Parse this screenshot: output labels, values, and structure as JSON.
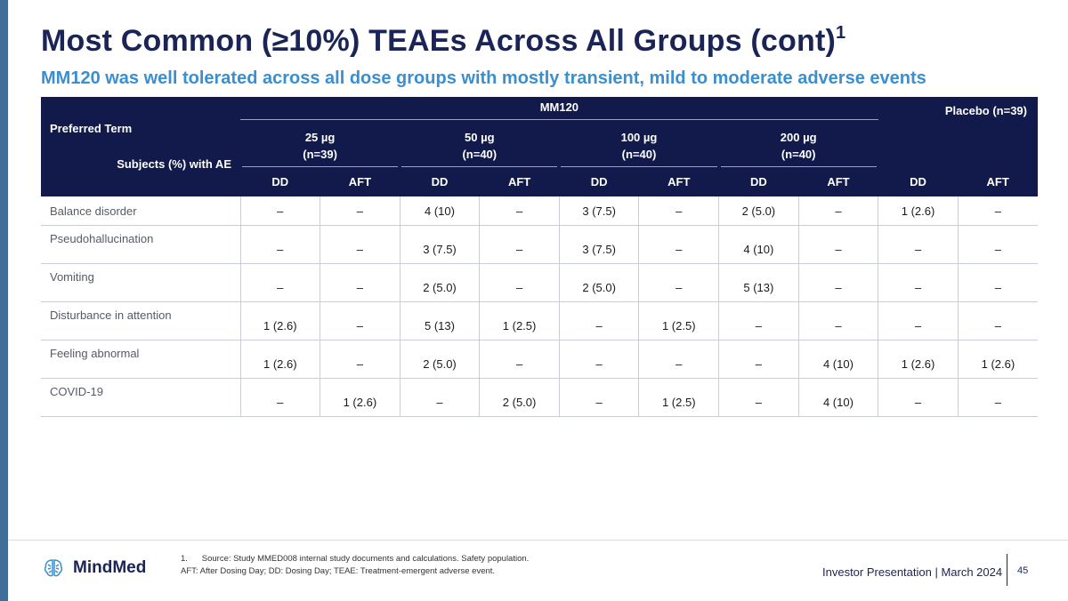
{
  "title": "Most Common (≥10%) TEAEs Across All Groups (cont)",
  "title_sup": "1",
  "subtitle": "MM120 was well tolerated across all dose groups with mostly transient, mild to moderate adverse events",
  "table": {
    "preferred_term_label": "Preferred Term",
    "subjects_label": "Subjects (%) with AE",
    "group_mm": "MM120",
    "group_placebo": "Placebo (n=39)",
    "doses": [
      {
        "dose": "25 µg",
        "n": "(n=39)"
      },
      {
        "dose": "50 µg",
        "n": "(n=40)"
      },
      {
        "dose": "100 µg",
        "n": "(n=40)"
      },
      {
        "dose": "200 µg",
        "n": "(n=40)"
      }
    ],
    "subheaders": [
      "DD",
      "AFT",
      "DD",
      "AFT",
      "DD",
      "AFT",
      "DD",
      "AFT",
      "DD",
      "AFT"
    ],
    "rows": [
      {
        "term": "Balance disorder",
        "values": [
          "–",
          "–",
          "4 (10)",
          "–",
          "3 (7.5)",
          "–",
          "2 (5.0)",
          "–",
          "1 (2.6)",
          "–"
        ]
      },
      {
        "term": "Pseudohallucination",
        "values": [
          "–",
          "–",
          "3 (7.5)",
          "–",
          "3 (7.5)",
          "–",
          "4 (10)",
          "–",
          "–",
          "–"
        ]
      },
      {
        "term": "Vomiting",
        "values": [
          "–",
          "–",
          "2 (5.0)",
          "–",
          "2 (5.0)",
          "–",
          "5 (13)",
          "–",
          "–",
          "–"
        ]
      },
      {
        "term": "Disturbance in attention",
        "values": [
          "1 (2.6)",
          "–",
          "5 (13)",
          "1 (2.5)",
          "–",
          "1 (2.5)",
          "–",
          "–",
          "–",
          "–"
        ]
      },
      {
        "term": "Feeling abnormal",
        "values": [
          "1 (2.6)",
          "–",
          "2 (5.0)",
          "–",
          "–",
          "–",
          "–",
          "4 (10)",
          "1 (2.6)",
          "1 (2.6)"
        ]
      },
      {
        "term": "COVID-19",
        "values": [
          "–",
          "1 (2.6)",
          "–",
          "2 (5.0)",
          "–",
          "1 (2.5)",
          "–",
          "4 (10)",
          "–",
          "–"
        ]
      }
    ]
  },
  "footer": {
    "footnote_1": "1.      Source: Study MMED008 internal study documents and calculations. Safety population.",
    "footnote_2": "AFT: After Dosing Day; DD: Dosing Day; TEAE: Treatment-emergent adverse event.",
    "logo_text": "MindMed",
    "presentation": "Investor Presentation | March 2024",
    "page_number": "45"
  },
  "colors": {
    "header_bg": "#111a4a",
    "title": "#1a2456",
    "subtitle": "#3a8fd0",
    "left_bar": "#3f6f98"
  },
  "icons": {
    "logo": "brain-logo-icon"
  }
}
